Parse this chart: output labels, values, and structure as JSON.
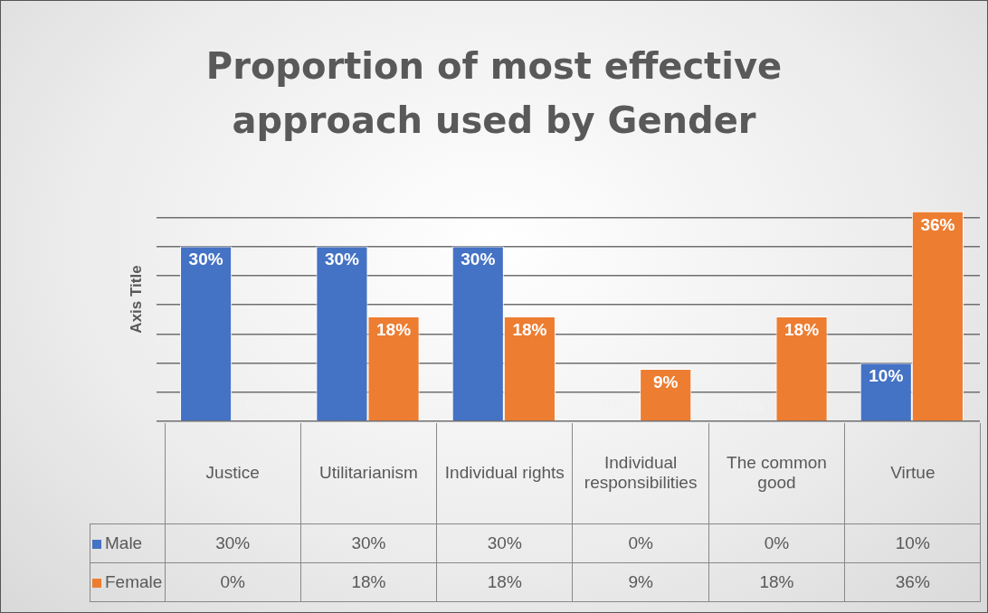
{
  "chart_data": {
    "type": "bar",
    "title": "Proportion of most effective approach used by Gender",
    "ylabel": "Axis Title",
    "categories": [
      "Justice",
      "Utilitarianism",
      "Individual rights",
      "Individual responsibilities",
      "The common good",
      "Virtue"
    ],
    "series": [
      {
        "name": "Male",
        "color": "#4472c4",
        "values": [
          30,
          30,
          30,
          0,
          0,
          10
        ],
        "value_labels": [
          "30%",
          "30%",
          "30%",
          "0%",
          "0%",
          "10%"
        ]
      },
      {
        "name": "Female",
        "color": "#ed7d31",
        "values": [
          0,
          18,
          18,
          9,
          18,
          36
        ],
        "value_labels": [
          "0%",
          "18%",
          "18%",
          "9%",
          "18%",
          "36%"
        ]
      }
    ],
    "yticks": [
      {
        "value": 0,
        "label": null
      },
      {
        "value": 5,
        "label": null
      },
      {
        "value": 10,
        "label": null
      },
      {
        "value": 15,
        "label": null
      },
      {
        "value": 20,
        "label": null
      },
      {
        "value": 25,
        "label": null
      },
      {
        "value": 30,
        "label": null
      },
      {
        "value": 35,
        "label": null
      }
    ],
    "grid": "y",
    "legend": "bottom",
    "tick_labels": "x"
  }
}
